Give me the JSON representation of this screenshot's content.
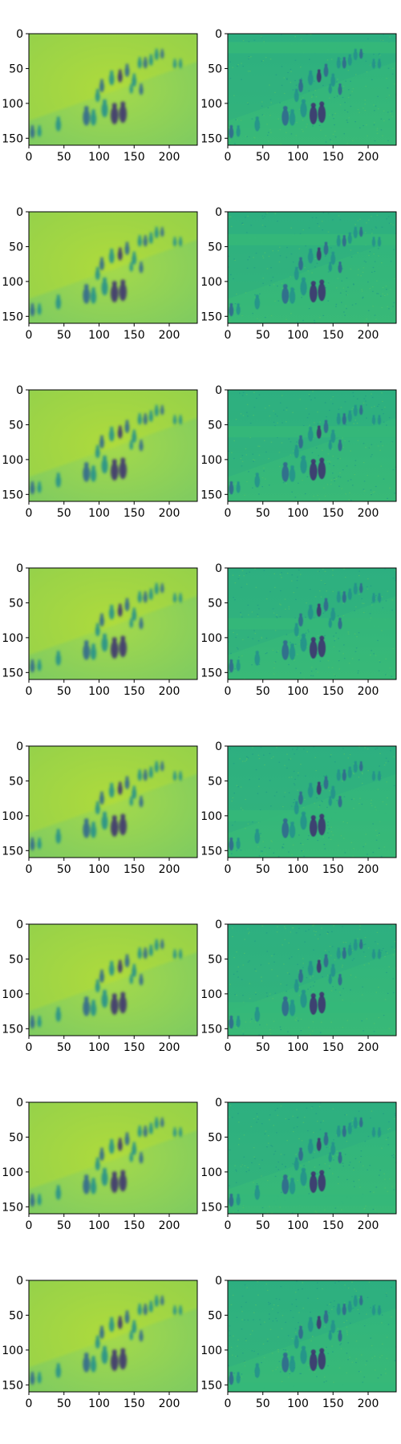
{
  "chart_data": {
    "type": "heatmap",
    "grid": {
      "rows": 8,
      "cols": 2
    },
    "image_size": {
      "width": 240,
      "height": 160
    },
    "xlim": [
      0,
      240
    ],
    "ylim": [
      160,
      0
    ],
    "xticks": [
      0,
      50,
      100,
      150,
      200
    ],
    "yticks": [
      0,
      50,
      100,
      150
    ],
    "title": "",
    "xlabel": "",
    "ylabel": "",
    "grid_lines": false,
    "colormap": "viridis",
    "colors": {
      "left_background": "#8cd35c",
      "right_background": "#33b67a",
      "figure_dark": "#3e3470",
      "figure_mid": "#31688e",
      "figure_teal": "#21918c",
      "accent_light": "#c2df23"
    },
    "band_rows_right": [
      20,
      40,
      60,
      80,
      100,
      120,
      140,
      155
    ],
    "panels": [
      {
        "row": 1,
        "col": 1,
        "content": "blurred-reconstruction"
      },
      {
        "row": 1,
        "col": 2,
        "content": "residual-map"
      },
      {
        "row": 2,
        "col": 1,
        "content": "blurred-reconstruction"
      },
      {
        "row": 2,
        "col": 2,
        "content": "residual-map"
      },
      {
        "row": 3,
        "col": 1,
        "content": "blurred-reconstruction"
      },
      {
        "row": 3,
        "col": 2,
        "content": "residual-map"
      },
      {
        "row": 4,
        "col": 1,
        "content": "blurred-reconstruction"
      },
      {
        "row": 4,
        "col": 2,
        "content": "residual-map"
      },
      {
        "row": 5,
        "col": 1,
        "content": "blurred-reconstruction"
      },
      {
        "row": 5,
        "col": 2,
        "content": "residual-map"
      },
      {
        "row": 6,
        "col": 1,
        "content": "blurred-reconstruction"
      },
      {
        "row": 6,
        "col": 2,
        "content": "residual-map"
      },
      {
        "row": 7,
        "col": 1,
        "content": "blurred-reconstruction"
      },
      {
        "row": 7,
        "col": 2,
        "content": "residual-map"
      },
      {
        "row": 8,
        "col": 1,
        "content": "blurred-reconstruction"
      },
      {
        "row": 8,
        "col": 2,
        "content": "residual-map"
      }
    ]
  }
}
